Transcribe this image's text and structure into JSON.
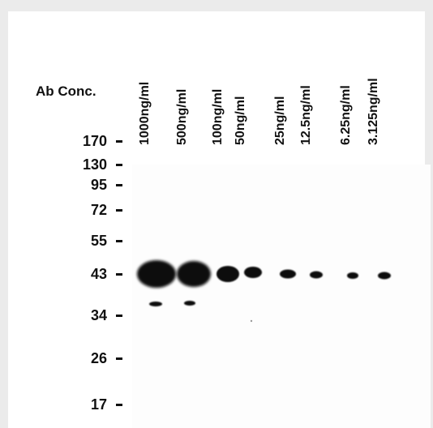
{
  "figure": {
    "row_label": "Ab Conc.",
    "lanes": [
      {
        "label": "1000ng/ml"
      },
      {
        "label": "500ng/ml"
      },
      {
        "label": "100ng/ml"
      },
      {
        "label": "50ng/ml"
      },
      {
        "label": "25ng/ml"
      },
      {
        "label": "12.5ng/ml"
      },
      {
        "label": "6.25ng/ml"
      },
      {
        "label": "3.125ng/ml"
      }
    ],
    "markers": [
      {
        "label": "170"
      },
      {
        "label": "130"
      },
      {
        "label": "95"
      },
      {
        "label": "72"
      },
      {
        "label": "55"
      },
      {
        "label": "43"
      },
      {
        "label": "34"
      },
      {
        "label": "26"
      },
      {
        "label": "17"
      }
    ],
    "band_color": "#0c0c0c"
  }
}
